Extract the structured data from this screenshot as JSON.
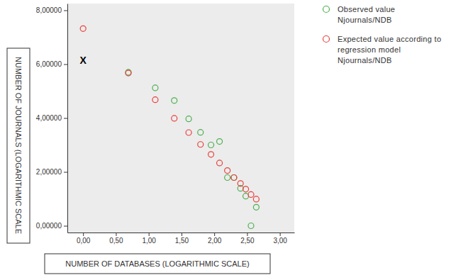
{
  "chart_data": {
    "type": "scatter",
    "x_label": "NUMBER OF DATABASES (LOGARITHMIC SCALE)",
    "y_label": "NUMBER OF JOURNALS (LOGARITHMIC SCALE",
    "xlim": [
      -0.24,
      3.22
    ],
    "ylim": [
      -0.25,
      8.25
    ],
    "xticks": [
      {
        "value": 0,
        "label": "0,00"
      },
      {
        "value": 0.5,
        "label": "0,50"
      },
      {
        "value": 1,
        "label": "1,00"
      },
      {
        "value": 1.5,
        "label": "1,50"
      },
      {
        "value": 2,
        "label": "2,00"
      },
      {
        "value": 2.5,
        "label": "2,50"
      },
      {
        "value": 3,
        "label": "3,00"
      }
    ],
    "yticks": [
      {
        "value": 0,
        "label": "0,00000"
      },
      {
        "value": 2,
        "label": "2,00000"
      },
      {
        "value": 4,
        "label": "4,00000"
      },
      {
        "value": 6,
        "label": "6,00000"
      },
      {
        "value": 8,
        "label": "8,00000"
      }
    ],
    "grid": false,
    "legend": "right",
    "marker": "circle",
    "series": [
      {
        "name": "Observed value Njournals/NDB",
        "color": "#4caf50",
        "x": [
          0.69,
          1.1,
          1.39,
          1.61,
          1.79,
          1.95,
          2.08,
          2.2,
          2.3,
          2.4,
          2.48,
          2.56,
          2.64
        ],
        "values": [
          5.7,
          5.12,
          4.65,
          3.97,
          3.47,
          3.0,
          3.13,
          1.79,
          1.79,
          1.39,
          1.1,
          0.0,
          0.69
        ]
      },
      {
        "name": "Expected value according to regression model Njournals/NDB",
        "color": "#e8413c",
        "x": [
          0.0,
          0.69,
          1.1,
          1.39,
          1.61,
          1.79,
          1.95,
          2.08,
          2.2,
          2.3,
          2.4,
          2.48,
          2.56,
          2.64
        ],
        "values": [
          7.32,
          5.67,
          4.68,
          3.99,
          3.46,
          3.02,
          2.65,
          2.33,
          2.05,
          1.79,
          1.57,
          1.36,
          1.16,
          0.99
        ]
      }
    ],
    "annotations": [
      {
        "text": "X",
        "x": 0,
        "y": 6.15
      }
    ]
  }
}
